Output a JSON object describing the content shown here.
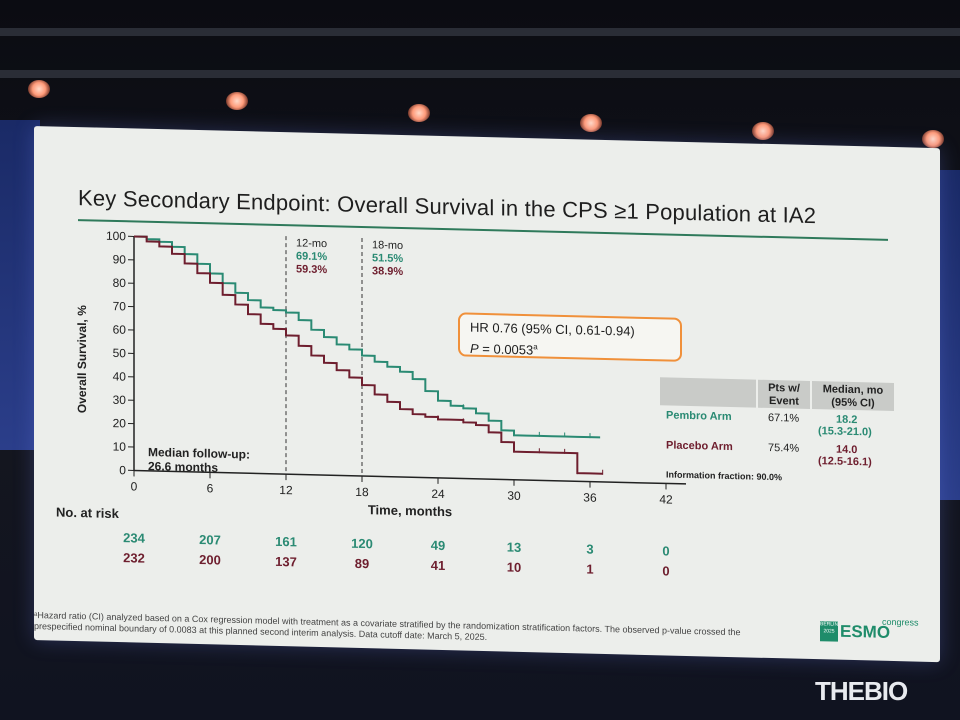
{
  "slide": {
    "title": "Key Secondary Endpoint: Overall Survival in the CPS ≥1 Population at IA2",
    "y_axis_label": "Overall Survival, %",
    "x_axis_label": "Time, months",
    "median_followup_line1": "Median follow-up:",
    "median_followup_line2": "26.6 months",
    "landmark_12": {
      "label": "12-mo",
      "pembro": "69.1%",
      "placebo": "59.3%"
    },
    "landmark_18": {
      "label": "18-mo",
      "pembro": "51.5%",
      "placebo": "38.9%"
    },
    "hr_line1": "HR 0.76 (95% CI, 0.61-0.94)",
    "hr_line2_p": "P",
    "hr_line2_rest": " = 0.0053",
    "hr_line2_sup": "a",
    "table": {
      "col1": "Pts w/ Event",
      "col2": "Median, mo (95% CI)",
      "rows": [
        {
          "arm": "Pembro Arm",
          "pct": "67.1%",
          "median": "18.2",
          "ci": "(15.3-21.0)"
        },
        {
          "arm": "Placebo Arm",
          "pct": "75.4%",
          "median": "14.0",
          "ci": "(12.5-16.1)"
        }
      ],
      "info": "Information fraction: 90.0%"
    },
    "no_at_risk_label": "No. at risk",
    "footnote": "ᵃHazard ratio (CI) analyzed based on a Cox regression model with treatment as a covariate stratified by the randomization stratification factors. The observed p-value crossed the prespecified nominal boundary of 0.0083 at this planned second interim analysis. Data cutoff date: March 5, 2025.",
    "logo": {
      "box_line1": "BERLIN",
      "box_line2": "2025",
      "text": "ESMO",
      "congress": "congress"
    }
  },
  "watermark": "THEBIO",
  "colors": {
    "pembro": "#2a8a73",
    "placebo": "#6e1e2e",
    "accent": "#f0903a"
  },
  "chart_data": {
    "type": "line",
    "title": "Overall Survival in the CPS ≥1 Population at IA2",
    "xlabel": "Time, months",
    "ylabel": "Overall Survival, %",
    "xlim": [
      0,
      42
    ],
    "ylim": [
      0,
      100
    ],
    "x_ticks": [
      0,
      6,
      12,
      18,
      24,
      30,
      36,
      42
    ],
    "y_ticks": [
      0,
      10,
      20,
      30,
      40,
      50,
      60,
      70,
      80,
      90,
      100
    ],
    "series": [
      {
        "name": "Pembro Arm",
        "x": [
          0,
          1,
          2,
          3,
          4,
          5,
          6,
          7,
          8,
          9,
          10,
          11,
          12,
          13,
          14,
          15,
          16,
          17,
          18,
          19,
          20,
          21,
          22,
          23,
          24,
          25,
          26,
          27,
          28,
          29,
          30,
          31,
          32,
          33,
          34,
          35,
          36,
          36.8
        ],
        "values": [
          100,
          99,
          98,
          96,
          93,
          89,
          85,
          81,
          77,
          74,
          71,
          70,
          69.1,
          66,
          62,
          59,
          56,
          54,
          51.5,
          49,
          47,
          45,
          42,
          37,
          33,
          31,
          30,
          28,
          25,
          21,
          19,
          19,
          19,
          19,
          19,
          19,
          19,
          19
        ]
      },
      {
        "name": "Placebo Arm",
        "x": [
          0,
          1,
          2,
          3,
          4,
          5,
          6,
          7,
          8,
          9,
          10,
          11,
          12,
          13,
          14,
          15,
          16,
          17,
          18,
          19,
          20,
          21,
          22,
          23,
          24,
          25,
          26,
          27,
          28,
          29,
          30,
          31,
          32,
          33,
          34,
          34.8,
          35,
          36,
          37
        ],
        "values": [
          100,
          98,
          96,
          93,
          89,
          85,
          81,
          76,
          72,
          68,
          64,
          62,
          59.3,
          55,
          51,
          48,
          45,
          42,
          38.9,
          35,
          32,
          29,
          27,
          26,
          25,
          25,
          24,
          23,
          20,
          16,
          12,
          12,
          12,
          12,
          12,
          12,
          3.5,
          3.5,
          3.5
        ]
      }
    ],
    "landmarks": [
      {
        "x": 12,
        "label": "12-mo",
        "pembro": 69.1,
        "placebo": 59.3
      },
      {
        "x": 18,
        "label": "18-mo",
        "pembro": 51.5,
        "placebo": 38.9
      }
    ],
    "number_at_risk": {
      "times": [
        0,
        6,
        12,
        18,
        24,
        30,
        36,
        42
      ],
      "pembro": [
        234,
        207,
        161,
        120,
        49,
        13,
        3,
        0
      ],
      "placebo": [
        232,
        200,
        137,
        89,
        41,
        10,
        1,
        0
      ]
    }
  }
}
